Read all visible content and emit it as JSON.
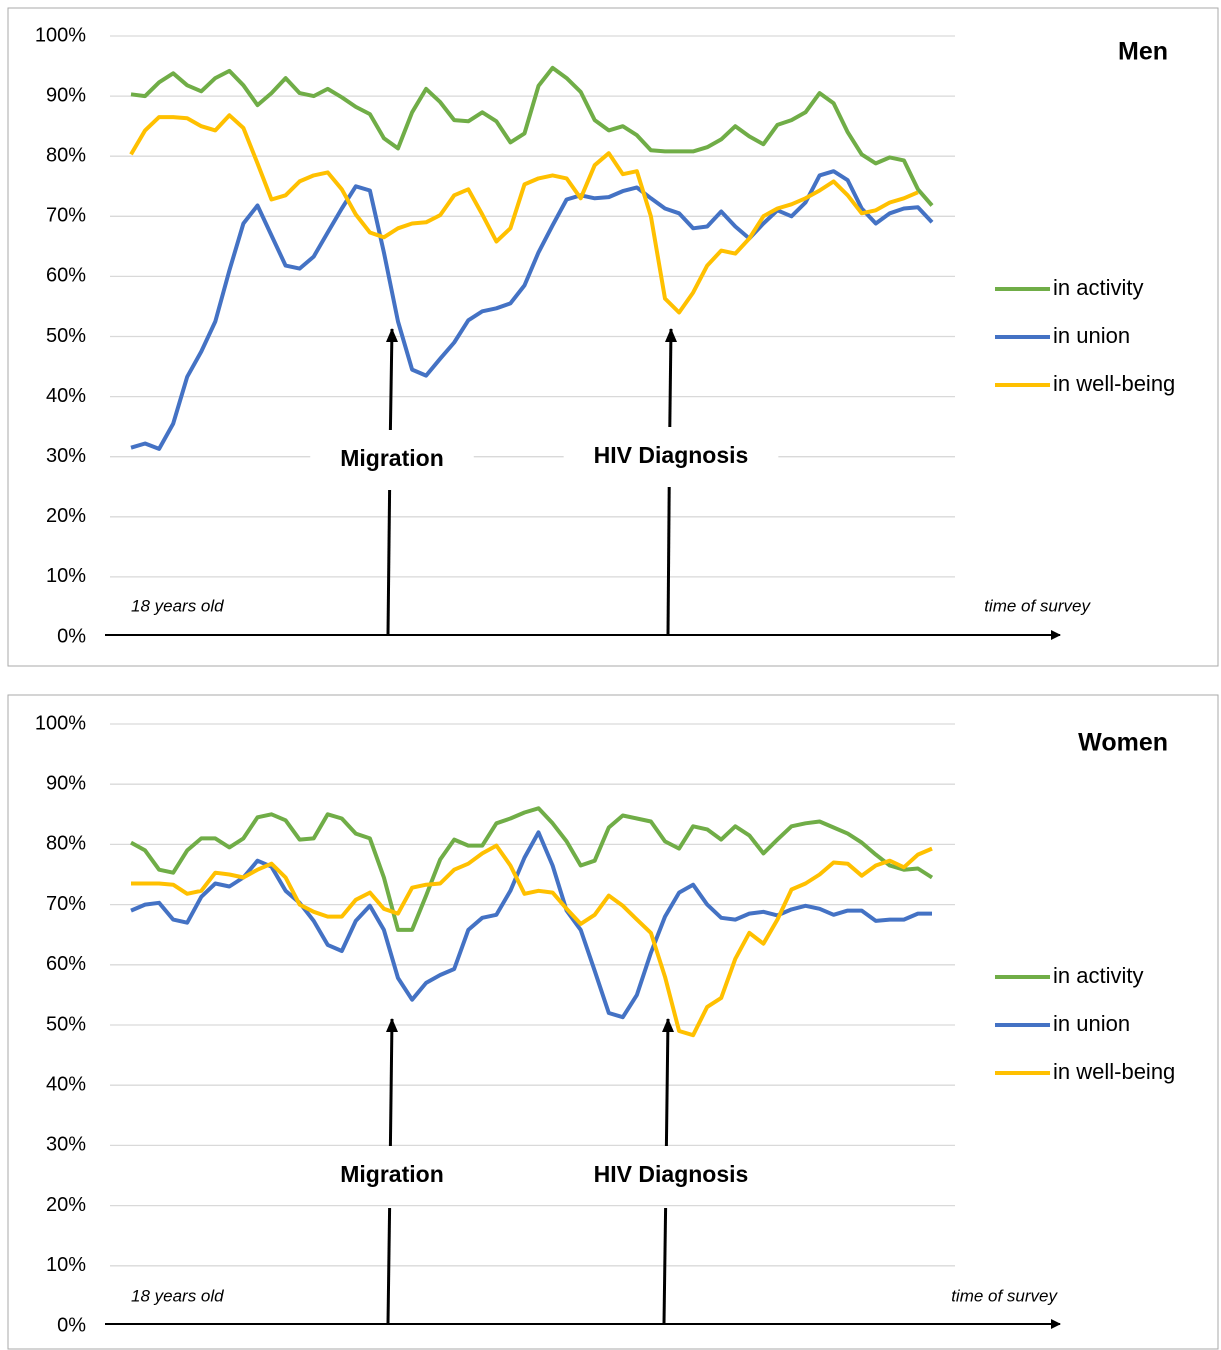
{
  "chart_data": [
    {
      "type": "line",
      "title": "Men",
      "ylim": [
        0,
        100
      ],
      "yticks": [
        {
          "value": 0,
          "label": "0%"
        },
        {
          "value": 10,
          "label": "10%"
        },
        {
          "value": 20,
          "label": "20%"
        },
        {
          "value": 30,
          "label": "30%"
        },
        {
          "value": 40,
          "label": "40%"
        },
        {
          "value": 50,
          "label": "50%"
        },
        {
          "value": 60,
          "label": "60%"
        },
        {
          "value": 70,
          "label": "70%"
        },
        {
          "value": 80,
          "label": "80%"
        },
        {
          "value": 90,
          "label": "90%"
        },
        {
          "value": 100,
          "label": "100%"
        }
      ],
      "grid": true,
      "legend": "right",
      "annotations": [
        "Migration",
        "HIV Diagnosis"
      ],
      "x_start_label": "18 years old",
      "x_end_label": "time of survey",
      "series": [
        {
          "name": "in activity",
          "color": "#70ad47",
          "values": [
            90.3,
            90,
            92.3,
            93.8,
            91.8,
            90.8,
            93,
            94.2,
            91.8,
            88.5,
            90.5,
            93,
            90.5,
            90,
            91.2,
            89.8,
            88.2,
            87,
            83,
            81.3,
            87.3,
            91.2,
            89,
            86,
            85.8,
            87.3,
            85.8,
            82.3,
            83.8,
            91.7,
            94.7,
            93,
            90.7,
            86,
            84.3,
            85,
            83.5,
            81,
            80.8,
            80.8,
            80.8,
            81.5,
            82.8,
            85,
            83.3,
            82,
            85.2,
            86,
            87.3,
            90.5,
            88.8,
            84,
            80.3,
            78.8,
            79.8,
            79.3,
            74.5,
            71.8
          ]
        },
        {
          "name": "in union",
          "color": "#4472c4",
          "values": [
            31.5,
            32.2,
            31.3,
            35.5,
            43.3,
            47.5,
            52.5,
            61,
            68.8,
            71.8,
            66.8,
            61.8,
            61.3,
            63.3,
            67.3,
            71.3,
            75,
            74.3,
            64,
            52.5,
            44.5,
            43.5,
            46.3,
            49,
            52.7,
            54.2,
            54.7,
            55.5,
            58.5,
            64,
            68.5,
            72.8,
            73.5,
            73,
            73.2,
            74.2,
            74.8,
            73,
            71.3,
            70.5,
            68,
            68.3,
            70.8,
            68.3,
            66.3,
            68.8,
            71,
            70,
            72.3,
            76.8,
            77.5,
            76,
            71.3,
            68.8,
            70.5,
            71.3,
            71.5,
            69
          ]
        },
        {
          "name": "in well-being",
          "color": "#ffc000",
          "values": [
            80.3,
            84.3,
            86.5,
            86.5,
            86.3,
            85,
            84.3,
            86.8,
            84.7,
            78.8,
            72.8,
            73.5,
            75.8,
            76.8,
            77.3,
            74.5,
            70.3,
            67.3,
            66.5,
            68,
            68.8,
            69,
            70.2,
            73.5,
            74.5,
            70.3,
            65.8,
            68,
            75.3,
            76.3,
            76.8,
            76.3,
            73,
            78.5,
            80.5,
            77,
            77.5,
            70,
            56.3,
            54,
            57.3,
            61.8,
            64.3,
            63.8,
            66.3,
            70,
            71.3,
            72,
            73,
            74.3,
            75.8,
            73.5,
            70.5,
            71,
            72.3,
            73,
            74,
            null
          ]
        }
      ]
    },
    {
      "type": "line",
      "title": "Women",
      "ylim": [
        0,
        100
      ],
      "yticks": [
        {
          "value": 0,
          "label": "0%"
        },
        {
          "value": 10,
          "label": "10%"
        },
        {
          "value": 20,
          "label": "20%"
        },
        {
          "value": 30,
          "label": "30%"
        },
        {
          "value": 40,
          "label": "40%"
        },
        {
          "value": 50,
          "label": "50%"
        },
        {
          "value": 60,
          "label": "60%"
        },
        {
          "value": 70,
          "label": "70%"
        },
        {
          "value": 80,
          "label": "80%"
        },
        {
          "value": 90,
          "label": "90%"
        },
        {
          "value": 100,
          "label": "100%"
        }
      ],
      "grid": true,
      "legend": "right",
      "annotations": [
        "Migration",
        "HIV Diagnosis"
      ],
      "x_start_label": "18 years old",
      "x_end_label": "time of survey",
      "series": [
        {
          "name": "in activity",
          "color": "#70ad47",
          "values": [
            80.3,
            79,
            75.8,
            75.3,
            79,
            81,
            81,
            79.5,
            81,
            84.5,
            85,
            84,
            80.8,
            81,
            85,
            84.3,
            81.8,
            81,
            74.5,
            65.8,
            65.8,
            71.5,
            77.5,
            80.8,
            79.8,
            79.8,
            83.5,
            84.3,
            85.3,
            86,
            83.5,
            80.5,
            76.5,
            77.3,
            82.8,
            84.8,
            84.3,
            83.8,
            80.5,
            79.3,
            83,
            82.5,
            80.8,
            83,
            81.5,
            78.5,
            80.8,
            83,
            83.5,
            83.8,
            82.8,
            81.8,
            80.3,
            78.3,
            76.5,
            75.8,
            76,
            74.5
          ]
        },
        {
          "name": "in union",
          "color": "#4472c4",
          "values": [
            69,
            70,
            70.3,
            67.5,
            67,
            71.3,
            73.5,
            73,
            74.5,
            77.3,
            76.3,
            72.3,
            70.3,
            67.3,
            63.3,
            62.3,
            67.3,
            69.8,
            65.8,
            57.8,
            54.2,
            57,
            58.3,
            59.3,
            65.8,
            67.8,
            68.3,
            72.3,
            77.8,
            82,
            76.5,
            69,
            65.8,
            59,
            52,
            51.3,
            55,
            62,
            68,
            72,
            73.3,
            70,
            67.8,
            67.5,
            68.5,
            68.8,
            68.2,
            69.2,
            69.8,
            69.3,
            68.3,
            69,
            69,
            67.3,
            67.5,
            67.5,
            68.5,
            68.5
          ]
        },
        {
          "name": "in well-being",
          "color": "#ffc000",
          "values": [
            73.5,
            73.5,
            73.5,
            73.3,
            71.8,
            72.3,
            75.3,
            75,
            74.5,
            75.8,
            76.8,
            74.5,
            70,
            68.8,
            68,
            68,
            70.8,
            72,
            69.3,
            68.5,
            72.8,
            73.3,
            73.5,
            75.8,
            76.8,
            78.5,
            79.8,
            76.5,
            71.8,
            72.3,
            72,
            69.3,
            66.8,
            68.3,
            71.5,
            69.8,
            67.5,
            65.3,
            58,
            49,
            48.3,
            53,
            54.5,
            61,
            65.3,
            63.5,
            67.5,
            72.5,
            73.5,
            75,
            77,
            76.8,
            74.8,
            76.5,
            77.3,
            76.2,
            78.3,
            79.3
          ]
        }
      ]
    }
  ]
}
